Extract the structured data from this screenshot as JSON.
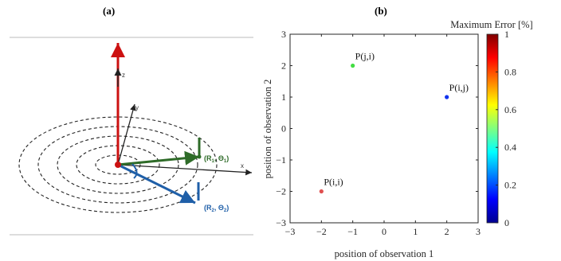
{
  "panels": {
    "a": {
      "label": "(a)"
    },
    "b": {
      "label": "(b)"
    }
  },
  "diagram_a": {
    "axes": {
      "x": "x",
      "y": "y",
      "z": "z"
    },
    "vector1": {
      "label_r": "(R",
      "label_r_sub": "1",
      "label_theta": ", Θ",
      "label_theta_sub": "1",
      "label_close": ")",
      "color": "#2e6b28"
    },
    "vector2": {
      "label_r": "(R",
      "label_r_sub": "2",
      "label_theta": ", Θ",
      "label_theta_sub": "2",
      "label_close": ")",
      "color": "#1f5fa8"
    },
    "z_axis_color": "#cc1111"
  },
  "chart_data": {
    "type": "scatter",
    "xlabel": "position of observation 1",
    "ylabel": "position of observation 2",
    "xlim": [
      -3,
      3
    ],
    "ylim": [
      -3,
      3
    ],
    "xticks": [
      -3,
      -2,
      -1,
      0,
      1,
      2,
      3
    ],
    "yticks": [
      -3,
      -2,
      -1,
      0,
      1,
      2,
      3
    ],
    "points": [
      {
        "label": "P(j,i)",
        "x": -1,
        "y": 2,
        "error": 0.4,
        "color": "#44dd44"
      },
      {
        "label": "P(i,j)",
        "x": 2,
        "y": 1,
        "error": 0.03,
        "color": "#1133ee"
      },
      {
        "label": "P(i,i)",
        "x": -2,
        "y": -2,
        "error": 0.9,
        "color": "#e05050"
      }
    ],
    "colorbar": {
      "title": "Maximum Error [%]",
      "range": [
        0,
        1
      ],
      "ticks": [
        "0",
        "0.2",
        "0.4",
        "0.6",
        "0.8",
        "1"
      ]
    }
  }
}
